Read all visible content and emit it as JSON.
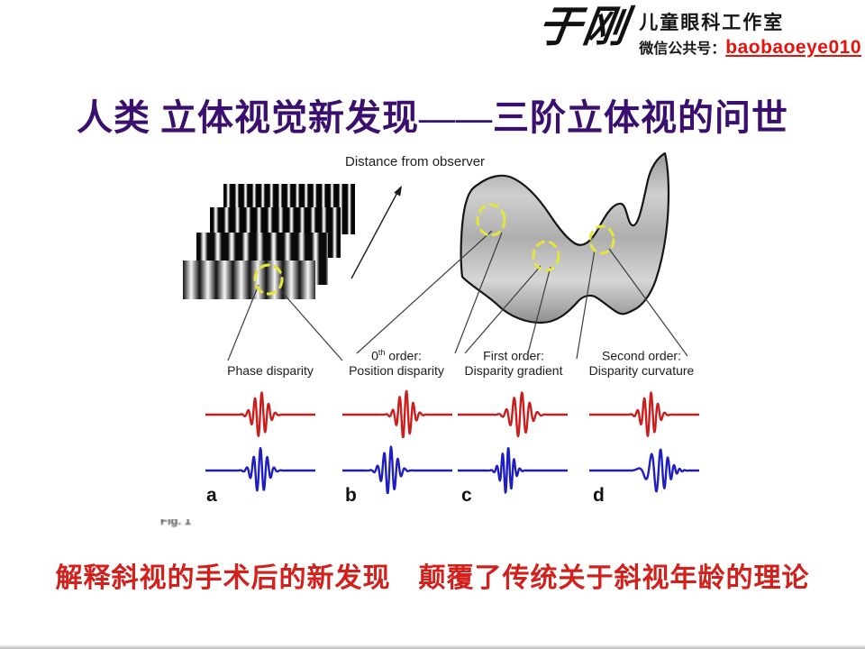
{
  "logo": {
    "brand": "于刚",
    "studio": "儿童眼科工作室",
    "wechat_label": "微信公共号：",
    "wechat_id": "baobaoeye010",
    "accent_color": "#e8120c"
  },
  "title": {
    "text": "人类 立体视觉新发现——三阶立体视的问世",
    "color": "#3a0f6e"
  },
  "figure": {
    "distance_label": "Distance from observer",
    "caption_fragment": "Fig. 1",
    "circle_color": "#e4e63c",
    "labels": [
      {
        "top_pre": "",
        "top_sup": "",
        "top_post": "",
        "bottom": "Phase disparity"
      },
      {
        "top_pre": "0",
        "top_sup": "th",
        "top_post": " order:",
        "bottom": "Position disparity"
      },
      {
        "top_pre": "First order:",
        "top_sup": "",
        "top_post": "",
        "bottom": "Disparity gradient"
      },
      {
        "top_pre": "Second order:",
        "top_sup": "",
        "top_post": "",
        "bottom": "Disparity curvature"
      }
    ],
    "wave_colors": {
      "red": "#cc1d1d",
      "blue": "#1e1ec0"
    },
    "panels": [
      {
        "label": "a",
        "red": {
          "c": 0.5,
          "s": 0.062,
          "f": 16,
          "p": 0.3,
          "a": 25
        },
        "blue": {
          "c": 0.5,
          "s": 0.062,
          "f": 16,
          "p": 1.5,
          "a": 25
        }
      },
      {
        "label": "b",
        "red": {
          "c": 0.57,
          "s": 0.062,
          "f": 16,
          "p": 0.3,
          "a": 27
        },
        "blue": {
          "c": 0.43,
          "s": 0.062,
          "f": 16,
          "p": 0.3,
          "a": 27
        }
      },
      {
        "label": "c",
        "red": {
          "c": 0.57,
          "s": 0.075,
          "f": 14,
          "p": 0.3,
          "a": 25
        },
        "blue": {
          "c": 0.45,
          "s": 0.052,
          "f": 19,
          "p": 0.3,
          "a": 26
        }
      },
      {
        "label": "d",
        "red": {
          "c": 0.55,
          "s": 0.062,
          "f": 16,
          "p": 0.3,
          "a": 25
        },
        "blue": {
          "c": 0.63,
          "s": 0.085,
          "f": 13,
          "p": 0.0,
          "k": 20,
          "a": 24
        }
      }
    ]
  },
  "note": {
    "text": "解释斜视的手术后的新发现　颠覆了传统关于斜视年龄的理论",
    "color": "#d2201c"
  }
}
